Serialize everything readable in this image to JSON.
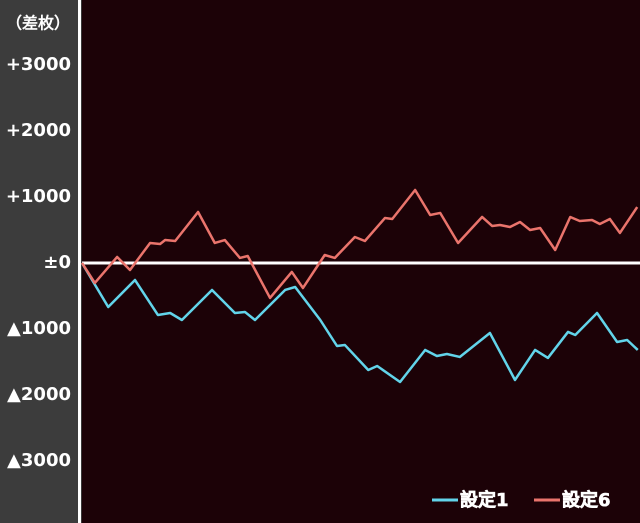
{
  "chart_data": {
    "type": "line",
    "y_label": "（差枚）",
    "xlim": [
      0,
      100
    ],
    "ylim": [
      -3940,
      3985
    ],
    "yticks": [
      {
        "value": 3000,
        "label": "+3000"
      },
      {
        "value": 2000,
        "label": "+2000"
      },
      {
        "value": 1000,
        "label": "+1000"
      },
      {
        "value": 0,
        "label": "±0"
      },
      {
        "value": -1000,
        "label": "▲1000"
      },
      {
        "value": -2000,
        "label": "▲2000"
      },
      {
        "value": -3000,
        "label": "▲3000"
      }
    ],
    "zero_line": true,
    "legend": "bottom-right",
    "series": [
      {
        "name": "設定1",
        "color": "#62d4ea",
        "x": [
          0,
          4.7,
          9.5,
          13.6,
          15.8,
          17.9,
          23.3,
          27.4,
          29.2,
          31.0,
          36.4,
          38.2,
          42.7,
          45.7,
          47.1,
          51.3,
          52.9,
          57.0,
          61.5,
          63.6,
          65.4,
          67.7,
          73.1,
          77.6,
          81.2,
          83.5,
          87.1,
          88.4,
          92.3,
          95.9,
          97.7,
          99.6
        ],
        "values": [
          0,
          -667,
          -258,
          -788,
          -758,
          -864,
          -409,
          -758,
          -742,
          -864,
          -409,
          -364,
          -864,
          -1258,
          -1242,
          -1621,
          -1561,
          -1803,
          -1318,
          -1409,
          -1379,
          -1424,
          -1061,
          -1773,
          -1318,
          -1439,
          -1045,
          -1091,
          -758,
          -1197,
          -1167,
          -1318
        ]
      },
      {
        "name": "設定6",
        "color": "#ea746c",
        "x": [
          0,
          2.3,
          6.3,
          8.6,
          12.2,
          14.0,
          14.9,
          16.7,
          20.8,
          23.8,
          25.6,
          28.3,
          29.7,
          33.7,
          37.6,
          39.6,
          43.5,
          45.3,
          48.9,
          50.7,
          54.3,
          55.6,
          59.7,
          62.4,
          64.2,
          67.4,
          71.7,
          73.5,
          74.9,
          76.7,
          78.5,
          80.3,
          82.1,
          84.8,
          87.5,
          89.2,
          91.4,
          92.8,
          94.6,
          96.4,
          99.5
        ],
        "values": [
          0,
          -303,
          91,
          -106,
          303,
          288,
          348,
          333,
          773,
          303,
          348,
          76,
          106,
          -530,
          -136,
          -379,
          121,
          76,
          394,
          333,
          682,
          667,
          1106,
          727,
          758,
          303,
          697,
          561,
          576,
          545,
          621,
          500,
          530,
          197,
          697,
          636,
          652,
          591,
          667,
          455,
          848
        ]
      }
    ]
  }
}
